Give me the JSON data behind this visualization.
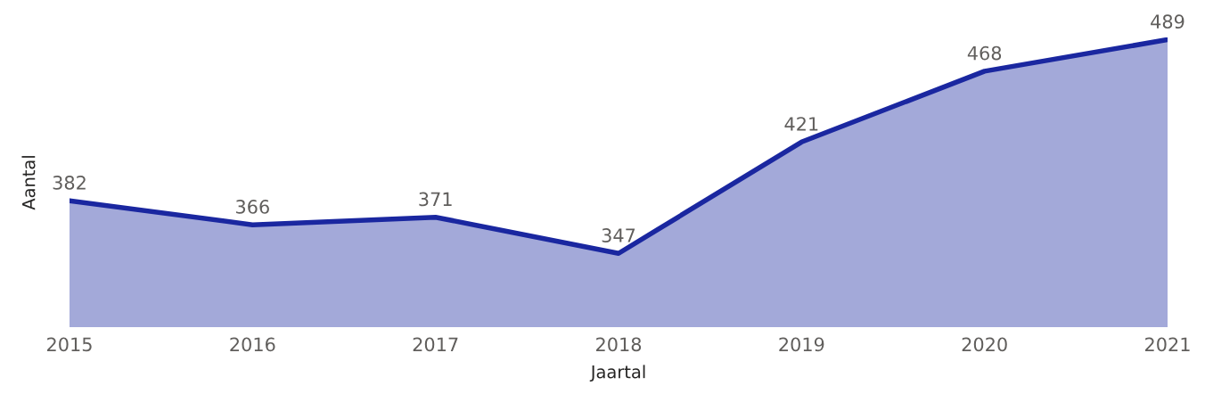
{
  "chart_data": {
    "type": "area",
    "xlabel": "Jaartal",
    "ylabel": "Aantal",
    "categories": [
      "2015",
      "2016",
      "2017",
      "2018",
      "2019",
      "2020",
      "2021"
    ],
    "series": [
      {
        "color": "#1a27a0",
        "values": [
          382,
          366,
          371,
          347,
          421,
          468,
          489
        ]
      }
    ],
    "data_labels": true,
    "tick_labels": "x"
  }
}
